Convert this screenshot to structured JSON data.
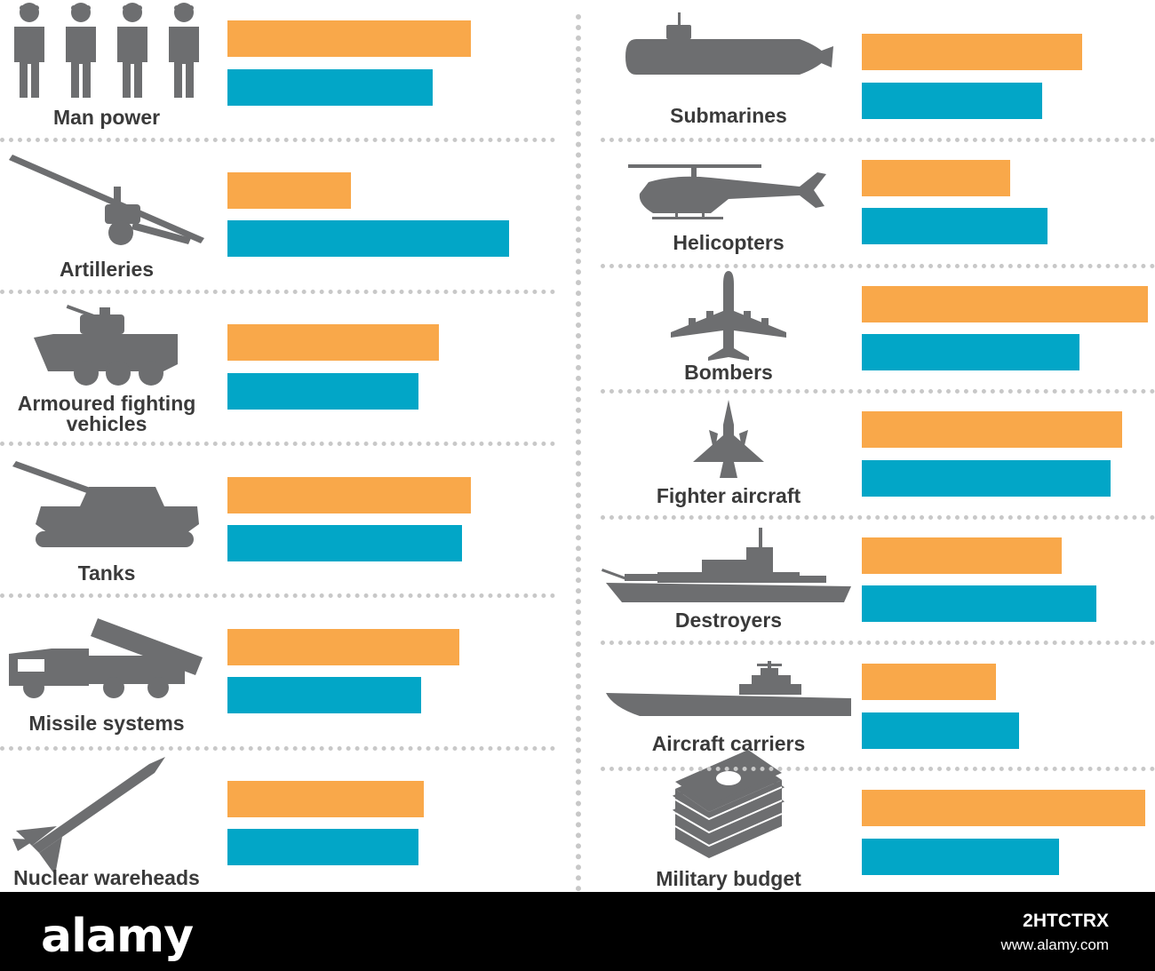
{
  "chart_data": {
    "type": "bar",
    "orientation": "horizontal",
    "colors": {
      "series_a": "#f9a84a",
      "series_b": "#02a6c7",
      "icon": "#6d6e70",
      "separator": "#c8c8c8"
    },
    "xlim": [
      0,
      100
    ],
    "categories": [
      "Man power",
      "Artilleries",
      "Armoured fighting vehicles",
      "Tanks",
      "Missile systems",
      "Nuclear wareheads",
      "Submarines",
      "Helicopters",
      "Bombers",
      "Fighter aircraft",
      "Destroyers",
      "Aircraft carriers",
      "Military budget"
    ],
    "icons": [
      "soldiers-icon",
      "artillery-icon",
      "armoured-vehicle-icon",
      "tank-icon",
      "missile-launcher-icon",
      "nuclear-missile-icon",
      "submarine-icon",
      "helicopter-icon",
      "bomber-icon",
      "fighter-jet-icon",
      "destroyer-icon",
      "aircraft-carrier-icon",
      "money-stack-icon"
    ],
    "series": [
      {
        "values": [
          83,
          42,
          72,
          83,
          79,
          67,
          77,
          52,
          100,
          91,
          70,
          47,
          99
        ]
      },
      {
        "values": [
          70,
          96,
          65,
          80,
          66,
          65,
          63,
          65,
          76,
          87,
          82,
          55,
          69
        ]
      }
    ]
  },
  "footer": {
    "logo": "alamy",
    "image_id": "2HTCTRX",
    "url": "www.alamy.com"
  }
}
